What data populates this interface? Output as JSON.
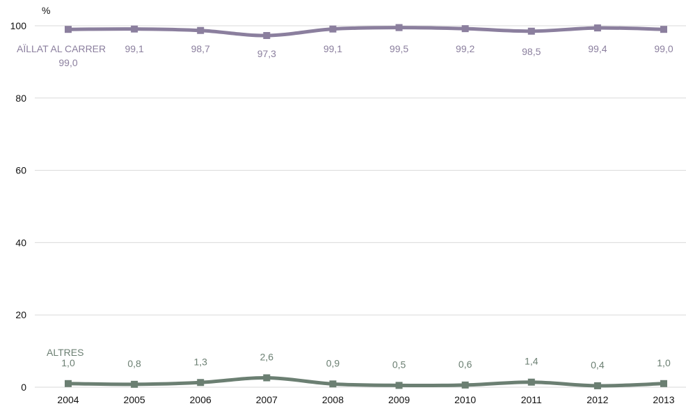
{
  "chart_data": {
    "type": "line",
    "unit_label": "%",
    "x": [
      "2004",
      "2005",
      "2006",
      "2007",
      "2008",
      "2009",
      "2010",
      "2011",
      "2012",
      "2013"
    ],
    "ylim": [
      0,
      100
    ],
    "yticks": [
      "0",
      "20",
      "40",
      "60",
      "80",
      "100"
    ],
    "grid": true,
    "legend": "none",
    "series": [
      {
        "name": "AÏLLAT AL CARRER",
        "color": "#8b7f9e",
        "values": [
          99.0,
          99.1,
          98.7,
          97.3,
          99.1,
          99.5,
          99.2,
          98.5,
          99.4,
          99.0
        ],
        "labels": [
          "99,0",
          "99,1",
          "98,7",
          "97,3",
          "99,1",
          "99,5",
          "99,2",
          "98,5",
          "99,4",
          "99,0"
        ]
      },
      {
        "name": "ALTRES",
        "color": "#6b7f72",
        "values": [
          1.0,
          0.8,
          1.3,
          2.6,
          0.9,
          0.5,
          0.6,
          1.4,
          0.4,
          1.0
        ],
        "labels": [
          "1,0",
          "0,8",
          "1,3",
          "2,6",
          "0,9",
          "0,5",
          "0,6",
          "1,4",
          "0,4",
          "1,0"
        ]
      }
    ]
  }
}
